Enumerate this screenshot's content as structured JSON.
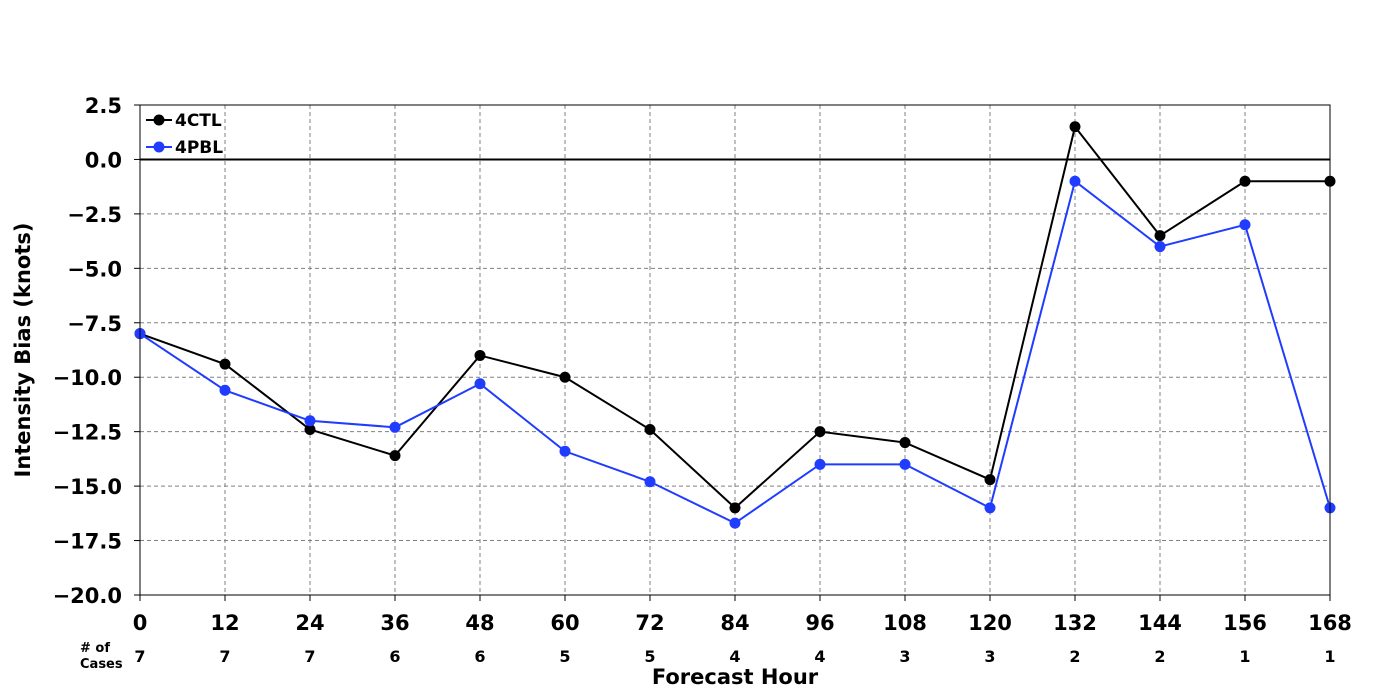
{
  "chart_data": {
    "type": "line",
    "title": "",
    "xlabel": "Forecast Hour",
    "ylabel": "Intensity Bias (knots)",
    "x": [
      0,
      12,
      24,
      36,
      48,
      60,
      72,
      84,
      96,
      108,
      120,
      132,
      144,
      156,
      168
    ],
    "xticks": [
      "0",
      "12",
      "24",
      "36",
      "48",
      "60",
      "72",
      "84",
      "96",
      "108",
      "120",
      "132",
      "144",
      "156",
      "168"
    ],
    "xlim": [
      0,
      168
    ],
    "ylim": [
      -20.0,
      2.5
    ],
    "yticks": [
      "2.5",
      "0.0",
      "−2.5",
      "−5.0",
      "−7.5",
      "−10.0",
      "−12.5",
      "−15.0",
      "−17.5",
      "−20.0"
    ],
    "ytick_values": [
      2.5,
      0.0,
      -2.5,
      -5.0,
      -7.5,
      -10.0,
      -12.5,
      -15.0,
      -17.5,
      -20.0
    ],
    "grid": true,
    "zero_line": true,
    "legend_position": "top-left",
    "series": [
      {
        "name": "4CTL",
        "color": "#000000",
        "values": [
          -8.0,
          -9.4,
          -12.4,
          -13.6,
          -9.0,
          -10.0,
          -12.4,
          -16.0,
          -12.5,
          -13.0,
          -14.7,
          1.5,
          -3.5,
          -1.0,
          -1.0
        ]
      },
      {
        "name": "4PBL",
        "color": "#1f3cff",
        "values": [
          -8.0,
          -10.6,
          -12.0,
          -12.3,
          -10.3,
          -13.4,
          -14.8,
          -16.7,
          -14.0,
          -14.0,
          -16.0,
          -1.0,
          -4.0,
          -3.0,
          -16.0
        ]
      }
    ],
    "cases": {
      "label_line1": "# of",
      "label_line2": "Cases",
      "values": [
        "7",
        "7",
        "7",
        "6",
        "6",
        "5",
        "5",
        "4",
        "4",
        "3",
        "3",
        "2",
        "2",
        "1",
        "1"
      ]
    }
  }
}
